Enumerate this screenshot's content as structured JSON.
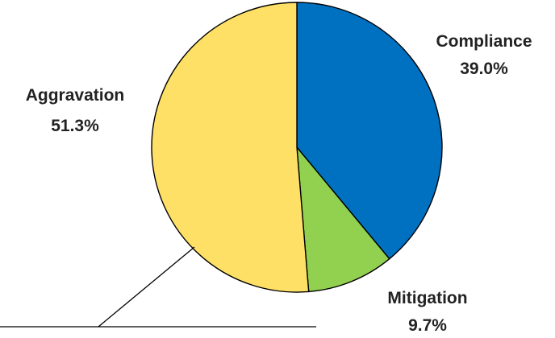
{
  "chart_data": {
    "type": "pie",
    "title": "",
    "slices": [
      {
        "label": "Compliance",
        "value": 39.0,
        "value_label": "39.0%",
        "color": "#0070C0"
      },
      {
        "label": "Mitigation",
        "value": 9.7,
        "value_label": "9.7%",
        "color": "#92D050"
      },
      {
        "label": "Aggravation",
        "value": 51.3,
        "value_label": "51.3%",
        "color": "#FFE066"
      }
    ],
    "start_angle": "12 o'clock",
    "direction": "clockwise",
    "outline_color": "#000000",
    "callout": {
      "slice": "Aggravation",
      "line_color": "#000000"
    }
  }
}
